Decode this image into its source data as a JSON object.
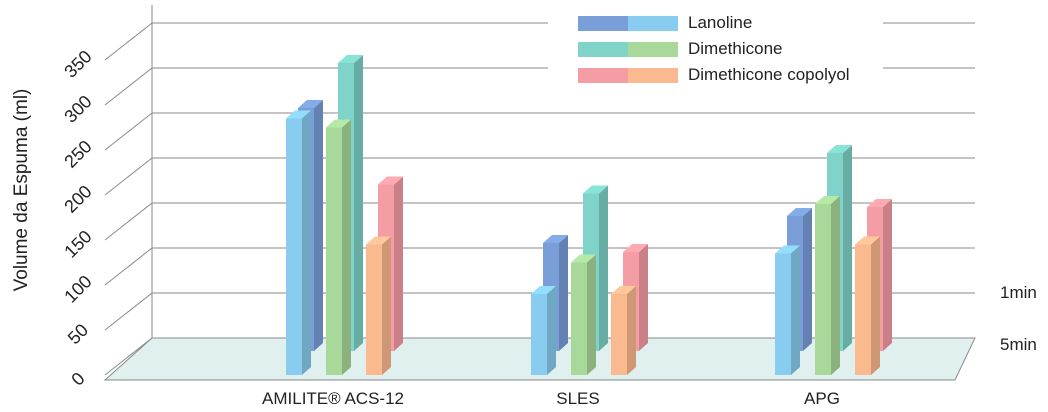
{
  "chart_data": {
    "type": "bar",
    "style": "3d-grouped",
    "ylabel": "Volume da Espuma (ml)",
    "ylim": [
      0,
      350
    ],
    "yticks": [
      "0",
      "50",
      "100",
      "150",
      "200",
      "250",
      "300",
      "350"
    ],
    "categories": [
      "AMILITE® ACS-12",
      "SLES",
      "APG"
    ],
    "depth_labels": [
      "1min",
      "5min"
    ],
    "legend_position": "top-right",
    "grid": true,
    "series": [
      {
        "name": "Lanoline",
        "colors": {
          "5min": "#88cdef",
          "1min": "#7a9fd8"
        },
        "values_5min": [
          285,
          90,
          135
        ],
        "values_1min": [
          270,
          120,
          150
        ]
      },
      {
        "name": "Dimethicone",
        "colors": {
          "5min": "#a8d89a",
          "1min": "#7fd3c8"
        },
        "values_5min": [
          275,
          125,
          190
        ],
        "values_1min": [
          320,
          175,
          220
        ]
      },
      {
        "name": "Dimethicone copolyol",
        "colors": {
          "5min": "#fbb98f",
          "1min": "#f59da5"
        },
        "values_5min": [
          145,
          90,
          145
        ],
        "values_1min": [
          185,
          110,
          160
        ]
      }
    ]
  }
}
